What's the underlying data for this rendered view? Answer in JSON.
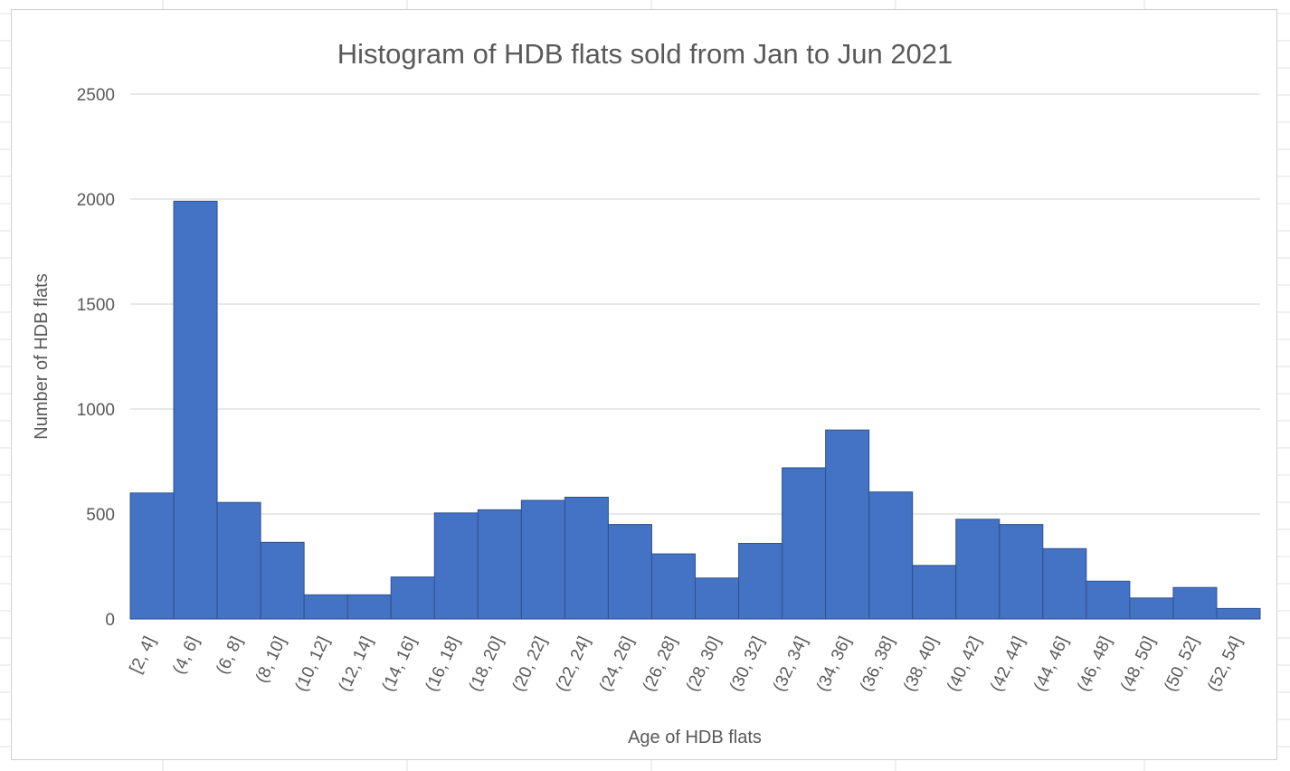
{
  "chart_data": {
    "type": "bar",
    "title": "Histogram of HDB flats sold from Jan to Jun 2021",
    "xlabel": "Age of HDB flats",
    "ylabel": "Number of HDB flats",
    "categories": [
      "[2, 4]",
      "(4, 6]",
      "(6, 8]",
      "(8, 10]",
      "(10, 12]",
      "(12, 14]",
      "(14, 16]",
      "(16, 18]",
      "(18, 20]",
      "(20, 22]",
      "(22, 24]",
      "(24, 26]",
      "(26, 28]",
      "(28, 30]",
      "(30, 32]",
      "(32, 34]",
      "(34, 36]",
      "(36, 38]",
      "(38, 40]",
      "(40, 42]",
      "(42, 44]",
      "(44, 46]",
      "(46, 48]",
      "(48, 50]",
      "(50, 52]",
      "(52, 54]"
    ],
    "values": [
      600,
      1990,
      555,
      365,
      115,
      115,
      200,
      505,
      520,
      565,
      580,
      450,
      310,
      195,
      360,
      720,
      900,
      605,
      255,
      475,
      450,
      335,
      180,
      100,
      150,
      50
    ],
    "ylim": [
      0,
      2500
    ],
    "yticks": [
      "0",
      "500",
      "1000",
      "1500",
      "2000",
      "2500"
    ],
    "grid": true,
    "legend": "none",
    "colors": {
      "bar": "#4472c4",
      "bar_border": "#2f528f",
      "grid": "#d9d9d9",
      "text": "#595959"
    }
  }
}
